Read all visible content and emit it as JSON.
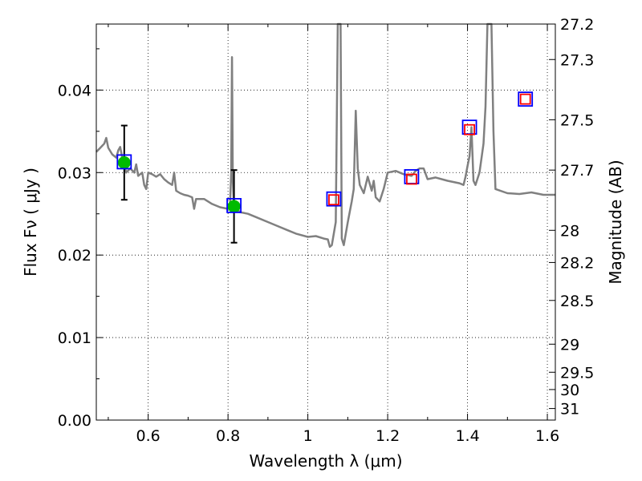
{
  "chart_data": {
    "type": "scatter",
    "title": "",
    "xlabel": "Wavelength  λ (μm)",
    "ylabel": "Flux  Fν  ( μJy )",
    "ylabel_right": "Magnitude (AB)",
    "xlim": [
      0.47,
      1.62
    ],
    "ylim": [
      0.0,
      0.048
    ],
    "grid": true,
    "x_ticks": [
      0.6,
      0.8,
      1.0,
      1.2,
      1.4,
      1.6
    ],
    "x_tick_labels": [
      "0.6",
      "0.8",
      "1",
      "1.2",
      "1.4",
      "1.6"
    ],
    "y_ticks": [
      0.0,
      0.01,
      0.02,
      0.03,
      0.04
    ],
    "y_tick_labels": [
      "0.00",
      "0.01",
      "0.02",
      "0.03",
      "0.04"
    ],
    "right_ticks": [
      {
        "label": "27.2",
        "flux": 0.048
      },
      {
        "label": "27.3",
        "flux": 0.0437
      },
      {
        "label": "27.5",
        "flux": 0.0364
      },
      {
        "label": "27.7",
        "flux": 0.0303
      },
      {
        "label": "28",
        "flux": 0.023
      },
      {
        "label": "28.2",
        "flux": 0.0191
      },
      {
        "label": "28.5",
        "flux": 0.0145
      },
      {
        "label": "29",
        "flux": 0.0092
      },
      {
        "label": "29.5",
        "flux": 0.0058
      },
      {
        "label": "30",
        "flux": 0.0037
      },
      {
        "label": "31",
        "flux": 0.0014
      }
    ],
    "series": [
      {
        "kind": "line",
        "color": "#808080",
        "points": [
          [
            0.47,
            0.0325
          ],
          [
            0.48,
            0.033
          ],
          [
            0.49,
            0.0335
          ],
          [
            0.495,
            0.0342
          ],
          [
            0.5,
            0.033
          ],
          [
            0.51,
            0.0322
          ],
          [
            0.52,
            0.0318
          ],
          [
            0.525,
            0.0327
          ],
          [
            0.53,
            0.0331
          ],
          [
            0.535,
            0.0318
          ],
          [
            0.545,
            0.03
          ],
          [
            0.555,
            0.0305
          ],
          [
            0.565,
            0.03
          ],
          [
            0.57,
            0.031
          ],
          [
            0.575,
            0.0296
          ],
          [
            0.58,
            0.0298
          ],
          [
            0.585,
            0.03
          ],
          [
            0.59,
            0.0285
          ],
          [
            0.595,
            0.028
          ],
          [
            0.6,
            0.03
          ],
          [
            0.61,
            0.0298
          ],
          [
            0.62,
            0.0295
          ],
          [
            0.63,
            0.0298
          ],
          [
            0.64,
            0.0292
          ],
          [
            0.65,
            0.0288
          ],
          [
            0.66,
            0.0285
          ],
          [
            0.665,
            0.03
          ],
          [
            0.67,
            0.0278
          ],
          [
            0.68,
            0.0275
          ],
          [
            0.69,
            0.0273
          ],
          [
            0.7,
            0.0272
          ],
          [
            0.71,
            0.027
          ],
          [
            0.715,
            0.0256
          ],
          [
            0.72,
            0.0268
          ],
          [
            0.74,
            0.0268
          ],
          [
            0.76,
            0.0262
          ],
          [
            0.78,
            0.0258
          ],
          [
            0.8,
            0.0256
          ],
          [
            0.805,
            0.026
          ],
          [
            0.808,
            0.03
          ],
          [
            0.81,
            0.044
          ],
          [
            0.812,
            0.029
          ],
          [
            0.815,
            0.0258
          ],
          [
            0.82,
            0.0257
          ],
          [
            0.83,
            0.0252
          ],
          [
            0.85,
            0.025
          ],
          [
            0.87,
            0.0246
          ],
          [
            0.9,
            0.024
          ],
          [
            0.92,
            0.0236
          ],
          [
            0.95,
            0.023
          ],
          [
            0.97,
            0.0226
          ],
          [
            1.0,
            0.0222
          ],
          [
            1.02,
            0.0223
          ],
          [
            1.04,
            0.022
          ],
          [
            1.05,
            0.0219
          ],
          [
            1.055,
            0.021
          ],
          [
            1.06,
            0.0212
          ],
          [
            1.07,
            0.024
          ],
          [
            1.075,
            0.048
          ],
          [
            1.082,
            0.048
          ],
          [
            1.085,
            0.022
          ],
          [
            1.09,
            0.0212
          ],
          [
            1.1,
            0.024
          ],
          [
            1.11,
            0.0265
          ],
          [
            1.115,
            0.028
          ],
          [
            1.12,
            0.0375
          ],
          [
            1.125,
            0.0305
          ],
          [
            1.13,
            0.0285
          ],
          [
            1.14,
            0.0275
          ],
          [
            1.15,
            0.0295
          ],
          [
            1.16,
            0.0278
          ],
          [
            1.165,
            0.029
          ],
          [
            1.17,
            0.027
          ],
          [
            1.18,
            0.0265
          ],
          [
            1.19,
            0.028
          ],
          [
            1.2,
            0.03
          ],
          [
            1.22,
            0.0302
          ],
          [
            1.24,
            0.0298
          ],
          [
            1.26,
            0.0296
          ],
          [
            1.27,
            0.0302
          ],
          [
            1.28,
            0.0305
          ],
          [
            1.29,
            0.0305
          ],
          [
            1.3,
            0.0292
          ],
          [
            1.32,
            0.0294
          ],
          [
            1.35,
            0.029
          ],
          [
            1.38,
            0.0287
          ],
          [
            1.39,
            0.0285
          ],
          [
            1.395,
            0.0295
          ],
          [
            1.4,
            0.0308
          ],
          [
            1.405,
            0.032
          ],
          [
            1.41,
            0.0355
          ],
          [
            1.415,
            0.029
          ],
          [
            1.42,
            0.0285
          ],
          [
            1.43,
            0.03
          ],
          [
            1.44,
            0.0335
          ],
          [
            1.445,
            0.038
          ],
          [
            1.45,
            0.048
          ],
          [
            1.46,
            0.048
          ],
          [
            1.465,
            0.035
          ],
          [
            1.47,
            0.028
          ],
          [
            1.5,
            0.0275
          ],
          [
            1.53,
            0.0274
          ],
          [
            1.56,
            0.0276
          ],
          [
            1.59,
            0.0273
          ],
          [
            1.62,
            0.0273
          ]
        ]
      },
      {
        "kind": "errorbar",
        "color": "#00bb00",
        "x": [
          0.54,
          0.815
        ],
        "y": [
          0.0312,
          0.0259
        ],
        "yerr": [
          0.0045,
          0.0044
        ]
      },
      {
        "kind": "square-marker",
        "color": "#0000ff",
        "x": [
          0.54,
          0.815,
          1.065,
          1.26,
          1.405,
          1.545
        ],
        "y": [
          0.0313,
          0.026,
          0.0268,
          0.0295,
          0.0355,
          0.0389
        ]
      },
      {
        "kind": "square-marker",
        "color": "#ff0000",
        "x": [
          1.065,
          1.26,
          1.405,
          1.545
        ],
        "y": [
          0.0267,
          0.0292,
          0.0352,
          0.0389
        ]
      }
    ]
  }
}
